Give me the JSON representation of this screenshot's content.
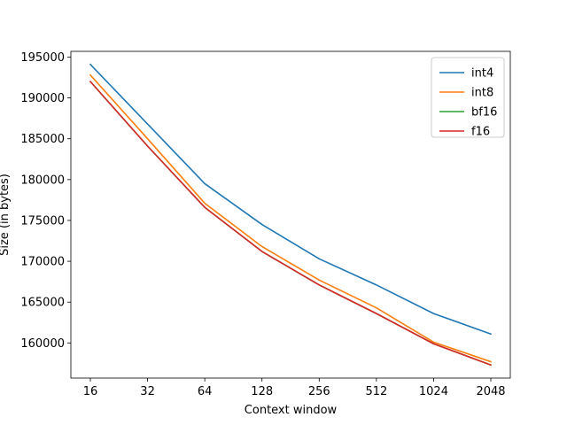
{
  "chart_data": {
    "type": "line",
    "xlabel": "Context window",
    "ylabel": "Size (in bytes)",
    "x_scale": "log2",
    "categories": [
      "16",
      "32",
      "64",
      "128",
      "256",
      "512",
      "1024",
      "2048"
    ],
    "x": [
      16,
      32,
      64,
      128,
      256,
      512,
      1024,
      2048
    ],
    "ylim": [
      155700,
      195700
    ],
    "yticks": [
      160000,
      165000,
      170000,
      175000,
      180000,
      185000,
      190000,
      195000
    ],
    "ytick_labels": [
      "160000",
      "165000",
      "170000",
      "175000",
      "180000",
      "185000",
      "190000",
      "195000"
    ],
    "grid": false,
    "legend_position": "top-right",
    "series": [
      {
        "name": "int4",
        "color": "#1f77b4",
        "values": [
          194100,
          186800,
          179500,
          174500,
          170300,
          167100,
          163600,
          161100
        ]
      },
      {
        "name": "int8",
        "color": "#ff7f0e",
        "values": [
          192800,
          185000,
          177100,
          171800,
          167700,
          164300,
          160100,
          157700
        ]
      },
      {
        "name": "bf16",
        "color": "#2ca02c",
        "values": [
          192000,
          184100,
          176600,
          171200,
          167100,
          163600,
          159900,
          157300
        ]
      },
      {
        "name": "f16",
        "color": "#d62728",
        "values": [
          192000,
          184100,
          176600,
          171200,
          167100,
          163600,
          159900,
          157300
        ]
      }
    ]
  }
}
